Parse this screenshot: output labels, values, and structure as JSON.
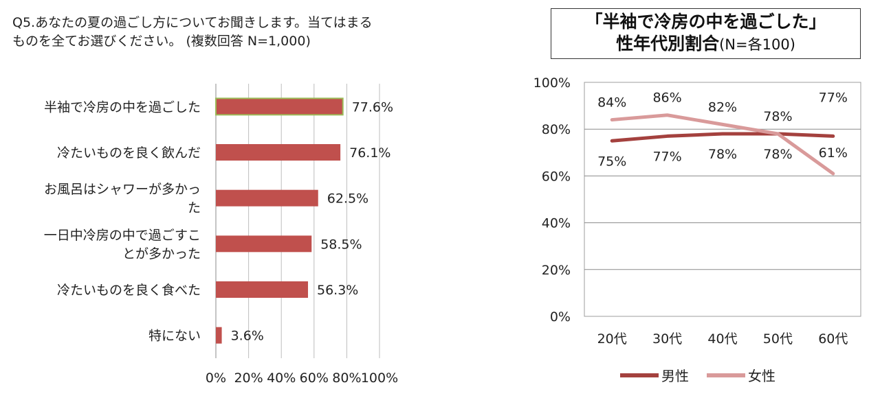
{
  "question": {
    "line1": "Q5.あなたの夏の過ごし方についてお聞きします。当てはまる",
    "line2": "ものを全てお選びください。 (複数回答 N=1,000)"
  },
  "chart_data": [
    {
      "type": "bar",
      "orientation": "horizontal",
      "categories": [
        [
          "半袖で冷房の中を過ごした"
        ],
        [
          "冷たいものを良く飲んだ"
        ],
        [
          "お風呂はシャワーが多かっ",
          "た"
        ],
        [
          "一日中冷房の中で過ごすこ",
          "とが多かった"
        ],
        [
          "冷たいものを良く食べた"
        ],
        [
          "特にない"
        ]
      ],
      "values": [
        77.6,
        76.1,
        62.5,
        58.5,
        56.3,
        3.6
      ],
      "data_labels": [
        "77.6%",
        "76.1%",
        "62.5%",
        "58.5%",
        "56.3%",
        "3.6%"
      ],
      "xlim": [
        0,
        100
      ],
      "x_ticks": [
        "0%",
        "20%",
        "40%",
        "60%",
        "80%",
        "100%"
      ],
      "grid": "vertical",
      "bar_color": "#c0504d",
      "highlight_border_color": "#9bbb59",
      "highlight_index": 0
    },
    {
      "type": "line",
      "title_line1": "「半袖で冷房の中を過ごした」",
      "title_line2_bold": "性年代別割合",
      "title_line2_normal": "(N=各100)",
      "categories": [
        "20代",
        "30代",
        "40代",
        "50代",
        "60代"
      ],
      "ylim": [
        0,
        100
      ],
      "y_ticks": [
        "0%",
        "20%",
        "40%",
        "60%",
        "80%",
        "100%"
      ],
      "grid": "horizontal",
      "legend_position": "bottom",
      "series": [
        {
          "name": "男性",
          "values": [
            75,
            77,
            78,
            78,
            77
          ],
          "labels": [
            "75%",
            "77%",
            "78%",
            "78%",
            ""
          ],
          "color": "#a4413e"
        },
        {
          "name": "女性",
          "values": [
            84,
            86,
            82,
            78,
            61
          ],
          "labels": [
            "84%",
            "86%",
            "82%",
            "78%",
            "61%"
          ],
          "color": "#d99a9a"
        }
      ],
      "extra_label": "77%"
    }
  ]
}
